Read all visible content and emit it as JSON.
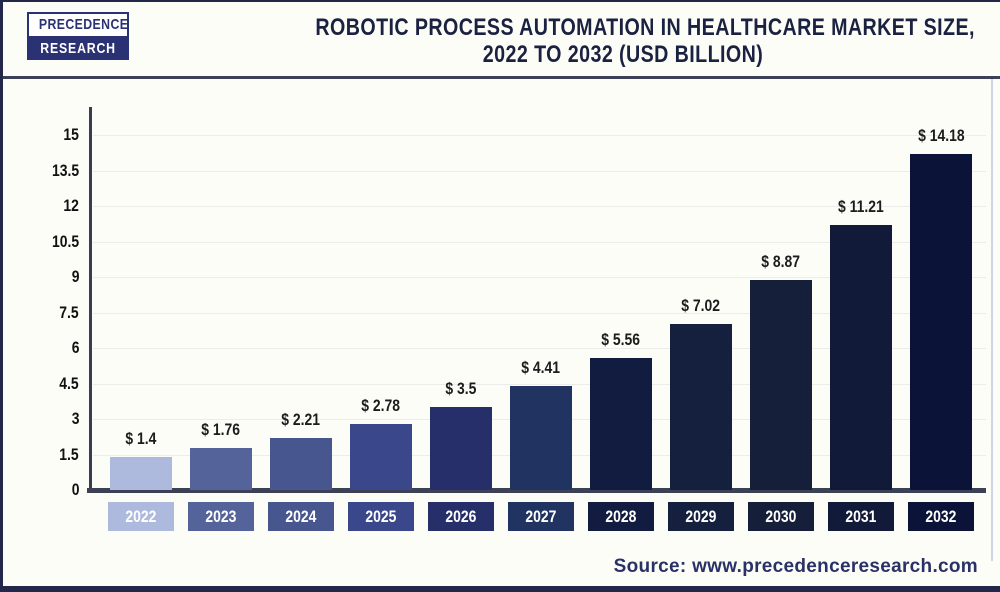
{
  "header": {
    "logo": {
      "line1": "PRECEDENCE",
      "line2": "RESEARCH"
    },
    "title_line1": "ROBOTIC PROCESS AUTOMATION IN HEALTHCARE MARKET SIZE,",
    "title_line2": "2022 TO 2032 (USD BILLION)"
  },
  "chart_data": {
    "type": "bar",
    "title": "Robotic Process Automation in Healthcare Market Size, 2022 to 2032 (USD Billion)",
    "categories": [
      "2022",
      "2023",
      "2024",
      "2025",
      "2026",
      "2027",
      "2028",
      "2029",
      "2030",
      "2031",
      "2032"
    ],
    "values": [
      1.4,
      1.76,
      2.21,
      2.78,
      3.5,
      4.41,
      5.56,
      7.02,
      8.87,
      11.21,
      14.18
    ],
    "value_labels": [
      "$ 1.4",
      "$ 1.76",
      "$ 2.21",
      "$ 2.78",
      "$ 3.5",
      "$ 4.41",
      "$ 5.56",
      "$ 7.02",
      "$ 8.87",
      "$ 11.21",
      "$ 14.18"
    ],
    "bar_colors": [
      "#aebadd",
      "#55639b",
      "#47568f",
      "#3a478b",
      "#272f6b",
      "#213461",
      "#121c40",
      "#15203e",
      "#151f3a",
      "#111a38",
      "#0c1338"
    ],
    "xlabel": "",
    "ylabel": "",
    "ylim": [
      0,
      15
    ],
    "yticks": [
      0,
      1.5,
      3,
      4.5,
      6,
      7.5,
      9,
      10.5,
      12,
      13.5,
      15
    ],
    "grid": true,
    "legend": "none"
  },
  "footer": {
    "source": "Source: www.precedenceresearch.com"
  },
  "colors": {
    "background": "#fdfdf8",
    "frame_border": "#23284a",
    "header_divider": "#3c4159",
    "axis_line": "#3c4154",
    "gridline": "#ececea",
    "title_text": "#1b2140",
    "tick_text": "#111111",
    "value_text": "#1c1c1c",
    "year_text": "#ffffff",
    "logo_navy": "#2b3274",
    "source_text": "#2a3166",
    "right_edge_line": "#cdd5ec"
  }
}
